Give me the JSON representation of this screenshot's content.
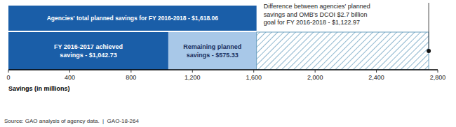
{
  "chart_data": {
    "type": "bar",
    "orientation": "horizontal",
    "stacked": true,
    "title": "Agencies' total planned savings for FY 2016-2018 - $1,618.06",
    "total_planned": 1618.06,
    "goal": 2741.03,
    "categories": [
      null
    ],
    "series": [
      {
        "color": "#1A5EA8",
        "values": [
          1042.73
        ],
        "value_labels": [
          "FY 2016-2017 achieved\nsavings - $1,042.73"
        ]
      },
      {
        "color": "#A8C8E8",
        "values": [
          575.33
        ],
        "value_labels": [
          "Remaining planned\nsavings - $575.33"
        ]
      },
      {
        "color": "#6A9FC0",
        "values": [
          1122.97
        ]
      }
    ],
    "annotation": "Difference between agencies' planned\nsavings and OMB's DCOI $2.7 billion\ngoal for FY 2016-2018 - $1,122.97",
    "xlabel": "Savings (in millions)",
    "source": "Source: GAO analysis of agency data.  |  GAO-18-264",
    "xlim": [
      0,
      2800
    ],
    "xticks": [
      0,
      400,
      800,
      {
        "value": 1200,
        "label": "1,200"
      },
      {
        "value": 1600,
        "label": "1,600"
      },
      {
        "value": 2000,
        "label": "2,000"
      },
      {
        "value": 2400,
        "label": "2,400"
      },
      {
        "value": 2800,
        "label": "2,800"
      }
    ]
  }
}
